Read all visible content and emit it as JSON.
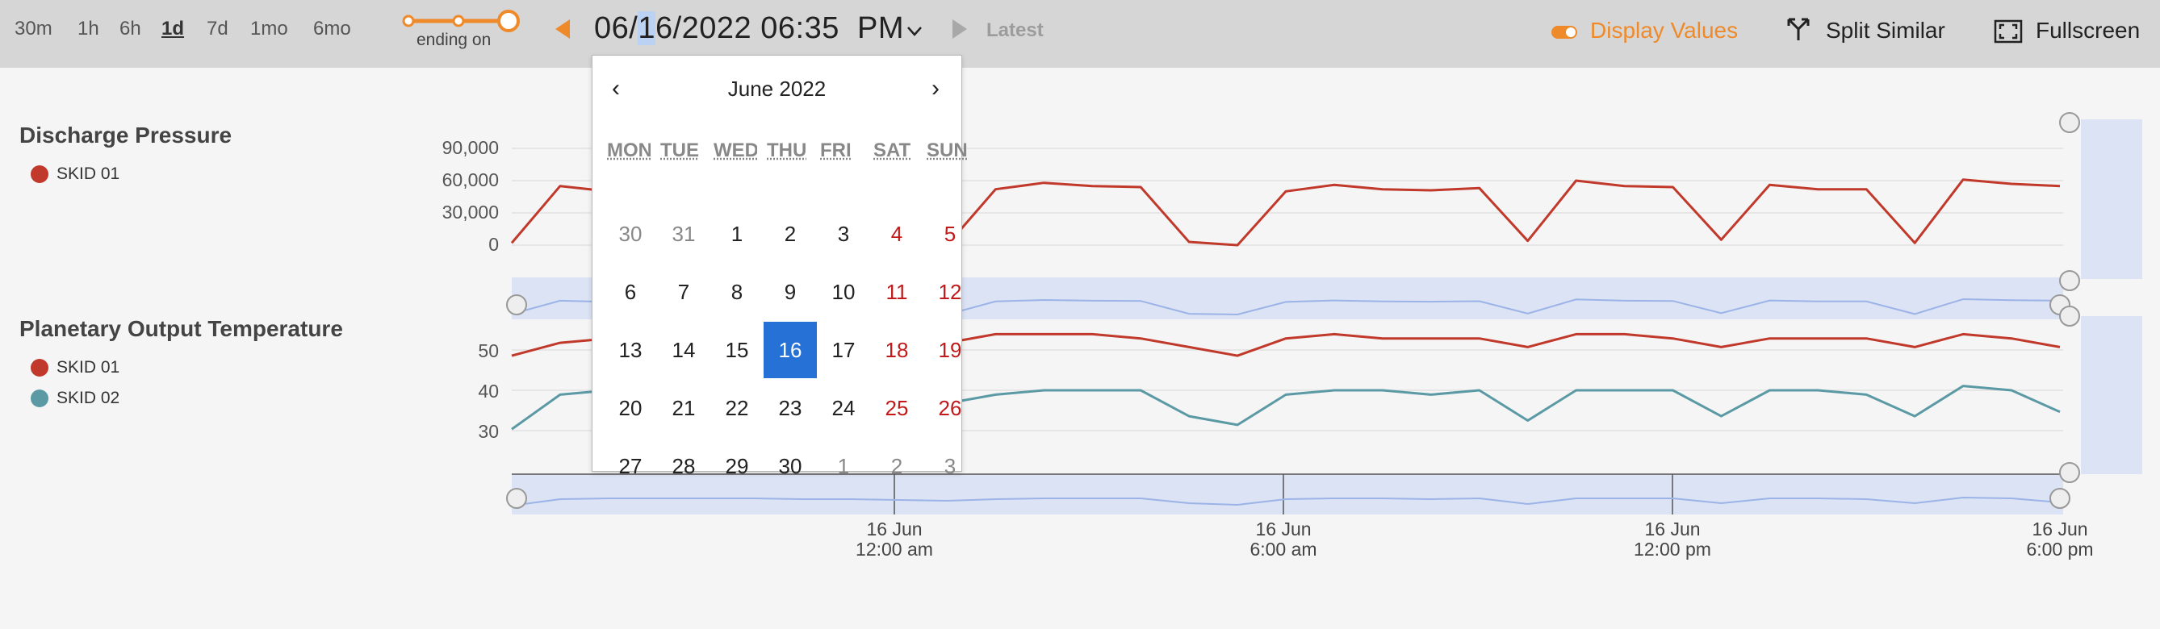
{
  "toolbar": {
    "ranges": [
      "30m",
      "1h",
      "6h",
      "1d",
      "7d",
      "1mo",
      "6mo"
    ],
    "active_range": "1d",
    "ending_label": "ending on",
    "datetime": {
      "prefix": "06/",
      "highlight": "1",
      "rest": "6/2022 06:35",
      "ampm": "PM"
    },
    "latest_label": "Latest",
    "display_values_label": "Display Values",
    "split_similar_label": "Split Similar",
    "fullscreen_label": "Fullscreen",
    "accent_color": "#ef8a2a"
  },
  "calendar": {
    "month_label": "June 2022",
    "prev": "‹",
    "next": "›",
    "weekdays": [
      "MON",
      "TUE",
      "WED",
      "THU",
      "FRI",
      "SAT",
      "SUN"
    ],
    "selected": 16,
    "selected_color": "#2671d6",
    "weeks": [
      [
        {
          "d": "30",
          "m": true
        },
        {
          "d": "31",
          "m": true
        },
        {
          "d": "1"
        },
        {
          "d": "2"
        },
        {
          "d": "3"
        },
        {
          "d": "4",
          "w": true
        },
        {
          "d": "5",
          "w": true
        }
      ],
      [
        {
          "d": "6"
        },
        {
          "d": "7"
        },
        {
          "d": "8"
        },
        {
          "d": "9"
        },
        {
          "d": "10"
        },
        {
          "d": "11",
          "w": true
        },
        {
          "d": "12",
          "w": true
        }
      ],
      [
        {
          "d": "13"
        },
        {
          "d": "14"
        },
        {
          "d": "15"
        },
        {
          "d": "16",
          "s": true
        },
        {
          "d": "17"
        },
        {
          "d": "18",
          "w": true
        },
        {
          "d": "19",
          "w": true
        }
      ],
      [
        {
          "d": "20"
        },
        {
          "d": "21"
        },
        {
          "d": "22"
        },
        {
          "d": "23"
        },
        {
          "d": "24"
        },
        {
          "d": "25",
          "w": true
        },
        {
          "d": "26",
          "w": true
        }
      ],
      [
        {
          "d": "27"
        },
        {
          "d": "28"
        },
        {
          "d": "29"
        },
        {
          "d": "30"
        },
        {
          "d": "1",
          "m": true
        },
        {
          "d": "2",
          "m": true
        },
        {
          "d": "3",
          "m": true
        }
      ]
    ]
  },
  "panels": [
    {
      "title": "Discharge Pressure",
      "series": [
        {
          "name": "SKID 01",
          "color": "#c0392b"
        }
      ],
      "yticks": [
        "90,000",
        "60,000",
        "30,000",
        "0"
      ]
    },
    {
      "title": "Planetary Output Temperature",
      "series": [
        {
          "name": "SKID 01",
          "color": "#c0392b"
        },
        {
          "name": "SKID 02",
          "color": "#5b9aa5"
        }
      ],
      "yticks": [
        "50",
        "40",
        "30"
      ]
    }
  ],
  "xaxis": [
    {
      "day": "16 Jun",
      "time": "12:00 am"
    },
    {
      "day": "16 Jun",
      "time": "6:00 am"
    },
    {
      "day": "16 Jun",
      "time": "12:00 pm"
    },
    {
      "day": "16 Jun",
      "time": "6:00 pm"
    }
  ],
  "chart_data": [
    {
      "type": "line",
      "title": "Discharge Pressure",
      "ylim": [
        0,
        90000
      ],
      "x": [
        0,
        0.6,
        1.2,
        1.8,
        2.4,
        3.0,
        3.6,
        4.2,
        4.8,
        5.4,
        6.0,
        6.6,
        7.2,
        7.8,
        8.4,
        9.0,
        9.6,
        10.2,
        10.8,
        11.4,
        12.0,
        12.6,
        13.2,
        13.8,
        14.4,
        15.0,
        15.6,
        16.2,
        16.8,
        17.4,
        18.0,
        18.6,
        19.2
      ],
      "series": [
        {
          "name": "SKID 01",
          "values": [
            2000,
            55000,
            50000,
            49000,
            50000,
            51000,
            52000,
            50000,
            0,
            0,
            52000,
            58000,
            55000,
            54000,
            3000,
            0,
            50000,
            56000,
            52000,
            51000,
            53000,
            4000,
            60000,
            55000,
            54000,
            5000,
            56000,
            52000,
            52000,
            2000,
            61000,
            57000,
            55000
          ]
        }
      ]
    },
    {
      "type": "line",
      "title": "Planetary Output Temperature",
      "ylim": [
        28,
        56
      ],
      "x": [
        0,
        0.6,
        1.2,
        1.8,
        2.4,
        3.0,
        3.6,
        4.2,
        4.8,
        5.4,
        6.0,
        6.6,
        7.2,
        7.8,
        8.4,
        9.0,
        9.6,
        10.2,
        10.8,
        11.4,
        12.0,
        12.6,
        13.2,
        13.8,
        14.4,
        15.0,
        15.6,
        16.2,
        16.8,
        17.4,
        18.0,
        18.6,
        19.2
      ],
      "series": [
        {
          "name": "SKID 01",
          "values": [
            50,
            53,
            54,
            55,
            55,
            55,
            54,
            54,
            53,
            53,
            55,
            55,
            55,
            54,
            52,
            50,
            54,
            55,
            54,
            54,
            54,
            52,
            55,
            55,
            54,
            52,
            54,
            54,
            54,
            52,
            55,
            54,
            52
          ]
        },
        {
          "name": "SKID 02",
          "values": [
            33,
            41,
            42,
            42,
            42,
            42,
            41,
            41,
            40,
            39,
            41,
            42,
            42,
            42,
            36,
            34,
            41,
            42,
            42,
            41,
            42,
            35,
            42,
            42,
            42,
            36,
            42,
            42,
            41,
            36,
            43,
            42,
            37
          ]
        }
      ]
    }
  ]
}
